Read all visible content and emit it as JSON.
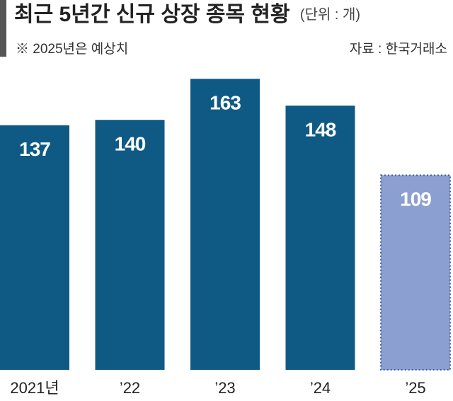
{
  "chart_data": {
    "type": "bar",
    "title": "최근 5년간 신규 상장 종목 현황",
    "unit": "(단위 : 개)",
    "note": "※ 2025년은 예상치",
    "source": "자료 : 한국거래소",
    "categories": [
      "2021년",
      "’22",
      "’23",
      "’24",
      "’25"
    ],
    "values": [
      137,
      140,
      163,
      148,
      109
    ],
    "colors": [
      "#0f5a85",
      "#0f5a85",
      "#0f5a85",
      "#0f5a85",
      "#8b9fd1"
    ]
  }
}
